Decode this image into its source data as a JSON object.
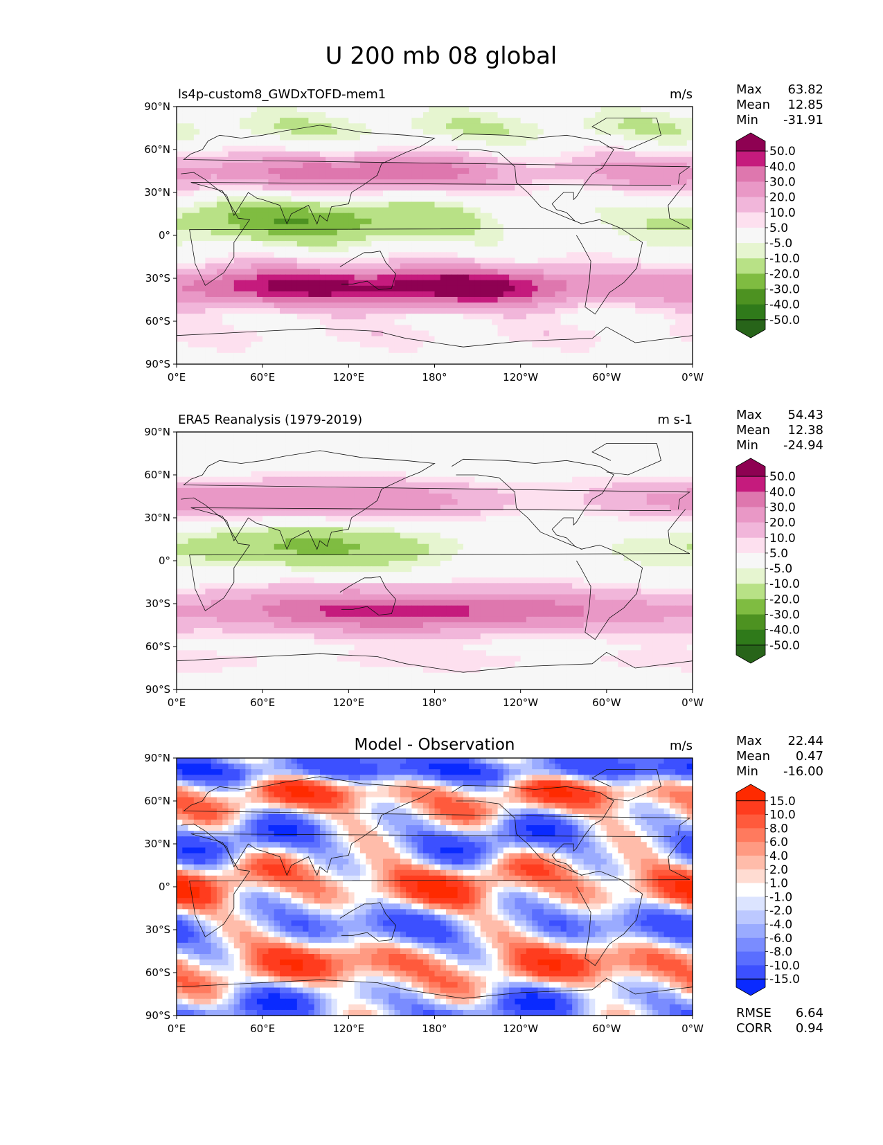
{
  "figure_title": "U 200 mb 08 global",
  "panels": [
    {
      "title_left": "ls4p-custom8_GWDxTOFD-mem1",
      "title_center": "",
      "units": "m/s",
      "stats": [
        {
          "label": "Max",
          "value": "63.82"
        },
        {
          "label": "Mean",
          "value": "12.85"
        },
        {
          "label": "Min",
          "value": "-31.91"
        }
      ],
      "colorbar_labels": [
        "50.0",
        "40.0",
        "30.0",
        "20.0",
        "10.0",
        "5.0",
        "-5.0",
        "-10.0",
        "-20.0",
        "-30.0",
        "-40.0",
        "-50.0"
      ],
      "colorbar_colors": [
        "#8e0152",
        "#c51b7d",
        "#de77ae",
        "#e998c6",
        "#f1b6da",
        "#fde0ef",
        "#f7f7f7",
        "#e6f5d0",
        "#b8e186",
        "#7fbc41",
        "#4d9221",
        "#2f7a1a",
        "#276419"
      ],
      "field": "model"
    },
    {
      "title_left": "ERA5 Reanalysis (1979-2019)",
      "title_center": "",
      "units": "m s-1",
      "stats": [
        {
          "label": "Max",
          "value": "54.43"
        },
        {
          "label": "Mean",
          "value": "12.38"
        },
        {
          "label": "Min",
          "value": "-24.94"
        }
      ],
      "colorbar_labels": [
        "50.0",
        "40.0",
        "30.0",
        "20.0",
        "10.0",
        "5.0",
        "-5.0",
        "-10.0",
        "-20.0",
        "-30.0",
        "-40.0",
        "-50.0"
      ],
      "colorbar_colors": [
        "#8e0152",
        "#c51b7d",
        "#de77ae",
        "#e998c6",
        "#f1b6da",
        "#fde0ef",
        "#f7f7f7",
        "#e6f5d0",
        "#b8e186",
        "#7fbc41",
        "#4d9221",
        "#2f7a1a",
        "#276419"
      ],
      "field": "obs"
    },
    {
      "title_left": "",
      "title_center": "Model - Observation",
      "units": "m/s",
      "stats": [
        {
          "label": "Max",
          "value": "22.44"
        },
        {
          "label": "Mean",
          "value": "0.47"
        },
        {
          "label": "Min",
          "value": "-16.00"
        }
      ],
      "extra_stats": [
        {
          "label": "RMSE",
          "value": "6.64"
        },
        {
          "label": "CORR",
          "value": "0.94"
        }
      ],
      "colorbar_labels": [
        "15.0",
        "10.0",
        "8.0",
        "6.0",
        "4.0",
        "2.0",
        "1.0",
        "-1.0",
        "-2.0",
        "-4.0",
        "-6.0",
        "-8.0",
        "-10.0",
        "-15.0"
      ],
      "colorbar_colors": [
        "#ff2a00",
        "#ff3c1e",
        "#ff5a3c",
        "#ff7a5e",
        "#ff9a82",
        "#ffbcaa",
        "#ffdcd2",
        "#ffffff",
        "#dce4ff",
        "#bcc8ff",
        "#9aabff",
        "#7a8cff",
        "#5a6eff",
        "#3c50ff",
        "#0a2aff"
      ],
      "field": "diff"
    }
  ],
  "lat_ticks": [
    "90°N",
    "60°N",
    "30°N",
    "0°",
    "30°S",
    "60°S",
    "90°S"
  ],
  "lon_ticks": [
    "0°E",
    "60°E",
    "120°E",
    "180°",
    "120°W",
    "60°W",
    "0°W"
  ]
}
